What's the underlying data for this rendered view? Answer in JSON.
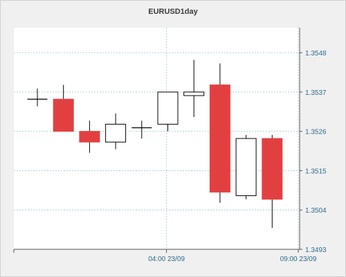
{
  "chart_data": {
    "type": "candlestick",
    "title": "EURUSD1day",
    "xlabel": "",
    "ylabel": "",
    "ylim": [
      1.3493,
      1.3555
    ],
    "y_ticks": [
      {
        "value": 1.3548,
        "label": "1.3548"
      },
      {
        "value": 1.3537,
        "label": "1.3537"
      },
      {
        "value": 1.3526,
        "label": "1.3526"
      },
      {
        "value": 1.3515,
        "label": "1.3515"
      },
      {
        "value": 1.3504,
        "label": "1.3504"
      },
      {
        "value": 1.3493,
        "label": "1.3493"
      }
    ],
    "x_ticks": [
      {
        "index": 4.95,
        "label": "04:00 23/09"
      },
      {
        "index": 10.0,
        "label": "09:00 23/09"
      }
    ],
    "grid": true,
    "colors": {
      "bearish_fill": "#e24040",
      "bullish_fill": "#ffffff",
      "outline": "#000000",
      "grid": "#a8d4e0",
      "axis_label": "#2b6c8e",
      "plot_bg": "#ffffff",
      "frame_bg": "#f0f0f0"
    },
    "candles": [
      {
        "open": 1.3535,
        "close": 1.3535,
        "high": 1.3538,
        "low": 1.3533
      },
      {
        "open": 1.3535,
        "close": 1.3526,
        "high": 1.3539,
        "low": 1.3526
      },
      {
        "open": 1.3526,
        "close": 1.3523,
        "high": 1.3529,
        "low": 1.352
      },
      {
        "open": 1.3523,
        "close": 1.3528,
        "high": 1.3531,
        "low": 1.3521
      },
      {
        "open": 1.3527,
        "close": 1.3527,
        "high": 1.3529,
        "low": 1.3524
      },
      {
        "open": 1.3528,
        "close": 1.3537,
        "high": 1.3537,
        "low": 1.3526
      },
      {
        "open": 1.3536,
        "close": 1.3537,
        "high": 1.3546,
        "low": 1.353
      },
      {
        "open": 1.3539,
        "close": 1.3509,
        "high": 1.3545,
        "low": 1.3506
      },
      {
        "open": 1.3508,
        "close": 1.3524,
        "high": 1.3525,
        "low": 1.3507
      },
      {
        "open": 1.3524,
        "close": 1.3507,
        "high": 1.3525,
        "low": 1.3499
      }
    ]
  }
}
